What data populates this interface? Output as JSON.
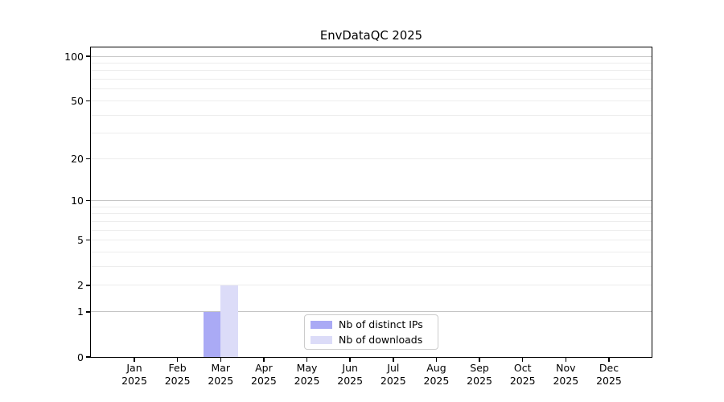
{
  "title": "EnvDataQC 2025",
  "chart_data": {
    "type": "bar",
    "title": "EnvDataQC 2025",
    "year": "2025",
    "categories": [
      "Jan",
      "Feb",
      "Mar",
      "Apr",
      "May",
      "Jun",
      "Jul",
      "Aug",
      "Sep",
      "Oct",
      "Nov",
      "Dec"
    ],
    "series": [
      {
        "name": "Nb of distinct IPs",
        "color": "#aaaaf5",
        "values": [
          0,
          0,
          1,
          0,
          0,
          0,
          0,
          0,
          0,
          0,
          0,
          0
        ]
      },
      {
        "name": "Nb of downloads",
        "color": "#dcdcf8",
        "values": [
          0,
          0,
          2,
          0,
          0,
          0,
          0,
          0,
          0,
          0,
          0,
          0
        ]
      }
    ],
    "xlabel": "",
    "ylabel": "",
    "yscale": "log1p",
    "ylim": [
      0,
      115
    ],
    "yticks_labeled": [
      0,
      1,
      2,
      5,
      10,
      20,
      50,
      100
    ],
    "grid": "horizontal",
    "grid_major_at": [
      1,
      10,
      100
    ],
    "grid_minor_at": [
      2,
      3,
      4,
      5,
      6,
      7,
      8,
      9,
      20,
      30,
      40,
      50,
      60,
      70,
      80,
      90
    ],
    "legend_position": "lower center",
    "legend_items": [
      "Nb of distinct IPs",
      "Nb of downloads"
    ]
  },
  "colors": {
    "background": "#ffffff",
    "axis": "#000000",
    "grid_major": "#c4c4c4",
    "grid_minor": "#ededed",
    "series_1": "#aaaaf5",
    "series_2": "#dcdcf8",
    "legend_border": "#cccccc",
    "text": "#000000"
  }
}
